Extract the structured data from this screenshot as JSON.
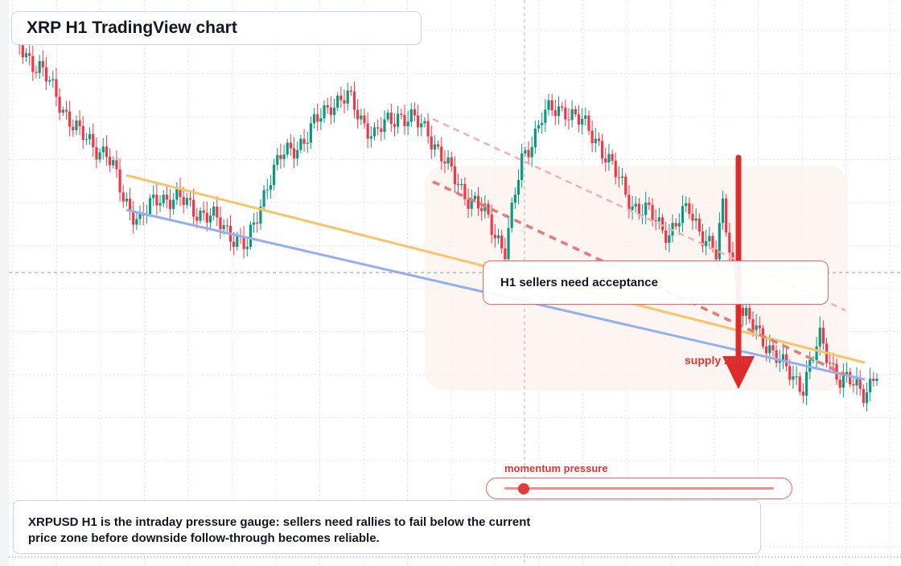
{
  "title": "XRP H1 TradingView chart",
  "annotations": {
    "acceptance_note": "H1 sellers need acceptance",
    "supply_label": "supply zone",
    "gauge_title": "momentum pressure"
  },
  "gauge": {
    "momentum_pressure_fraction": 0.07
  },
  "caption": {
    "line1": "XRPUSD H1 is the intraday pressure gauge: sellers need rallies to fail below the current",
    "line2": "price zone before downside follow-through becomes reliable."
  },
  "colors": {
    "bull": "#089981",
    "bear": "#f23645",
    "yellow_trendline": "#f7c46c",
    "blue_trendline": "#94aef2",
    "dashed_resistance": "#e88080",
    "arrow": "#dd2a2a",
    "zone_fill": "#fdf1ea"
  },
  "chart_data": {
    "type": "candlestick",
    "symbol": "XRPUSD",
    "timeframe": "H1",
    "ylim": [
      0,
      1000
    ],
    "grid": true,
    "candles": []
  }
}
